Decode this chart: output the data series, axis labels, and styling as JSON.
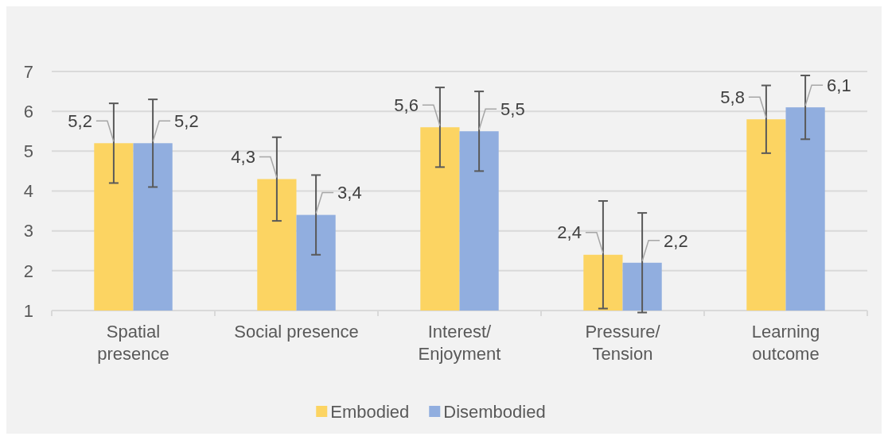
{
  "chart_data": {
    "type": "bar",
    "categories": [
      "Spatial presence",
      "Social presence",
      "Interest/Enjoyment",
      "Pressure/Tension",
      "Learning outcome"
    ],
    "series": [
      {
        "name": "Embodied",
        "color": "#fcd462",
        "values": [
          5.2,
          4.3,
          5.6,
          2.4,
          5.8
        ],
        "errors": [
          1.0,
          1.05,
          1.0,
          1.35,
          0.85
        ],
        "value_labels": [
          "5,2",
          "4,3",
          "5,6",
          "2,4",
          "5,8"
        ]
      },
      {
        "name": "Disembodied",
        "color": "#91aedf",
        "values": [
          5.2,
          3.4,
          5.5,
          2.2,
          6.1
        ],
        "errors": [
          1.1,
          1.0,
          1.0,
          1.25,
          0.8
        ],
        "value_labels": [
          "5,2",
          "3,4",
          "5,5",
          "2,2",
          "6,1"
        ]
      }
    ],
    "ylim": [
      1,
      7
    ],
    "yticks": [
      1,
      2,
      3,
      4,
      5,
      6,
      7
    ],
    "grid": "y",
    "legend": "bottom"
  }
}
